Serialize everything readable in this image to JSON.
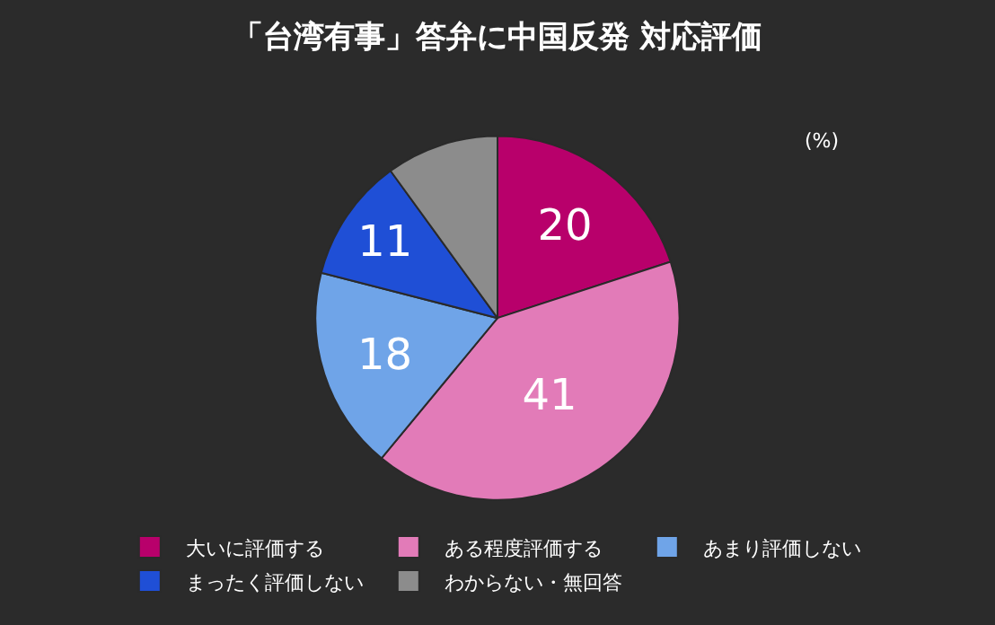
{
  "chart_data": {
    "type": "pie",
    "title": "「台湾有事」答弁に中国反発 対応評価",
    "categories": [
      "大いに評価する",
      "ある程度評価する",
      "あまり評価しない",
      "まったく評価しない",
      "わからない・無回答"
    ],
    "values": [
      20,
      41,
      18,
      11,
      10
    ],
    "value_labels": [
      "20",
      "41",
      "18",
      "11",
      null
    ],
    "colors": [
      "#b8006b",
      "#e27bb8",
      "#6fa4e8",
      "#1f4fd6",
      "#8c8c8c"
    ],
    "annotations": [
      "(%)"
    ],
    "legend": "bottom"
  }
}
